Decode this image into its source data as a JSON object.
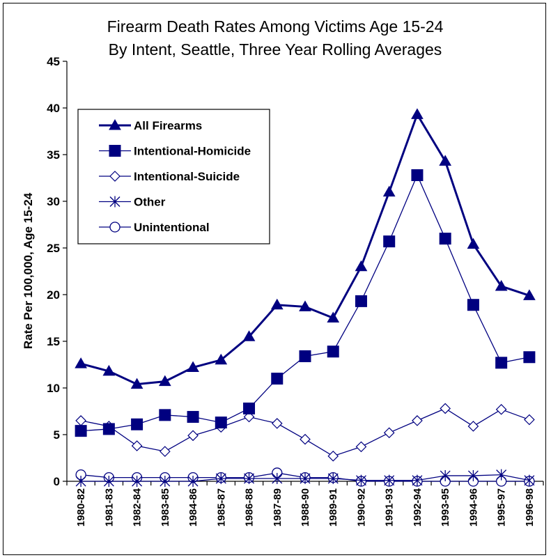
{
  "chart_data": {
    "type": "line",
    "title": "Firearm Death Rates Among Victims Age 15-24",
    "subtitle": "By Intent, Seattle, Three Year Rolling Averages",
    "ylabel": "Rate Per 100,000, Age 15-24",
    "xlabel": "",
    "ylim": [
      0,
      45
    ],
    "yticks": [
      "0",
      "5",
      "10",
      "15",
      "20",
      "25",
      "30",
      "35",
      "40",
      "45"
    ],
    "grid": false,
    "legend_position": "top-left",
    "categories": [
      "1980-82",
      "1981-83",
      "1982-84",
      "1983-85",
      "1984-86",
      "1985-87",
      "1986-88",
      "1987-89",
      "1988-90",
      "1989-91",
      "1990-92",
      "1991-93",
      "1992-94",
      "1993-95",
      "1994-96",
      "1995-97",
      "1996-98"
    ],
    "series": [
      {
        "name": "All Firearms",
        "marker": "triangle",
        "color": "#000080",
        "width": 3,
        "values": [
          12.6,
          11.8,
          10.4,
          10.7,
          12.2,
          13.0,
          15.5,
          18.9,
          18.7,
          17.5,
          23.0,
          31.0,
          39.3,
          34.3,
          25.4,
          20.9,
          19.9
        ]
      },
      {
        "name": "Intentional-Homicide",
        "marker": "square",
        "color": "#000080",
        "width": 1.3,
        "values": [
          5.4,
          5.6,
          6.1,
          7.1,
          6.9,
          6.3,
          7.8,
          11.0,
          13.4,
          13.9,
          19.3,
          25.7,
          32.8,
          26.0,
          18.9,
          12.7,
          13.3
        ]
      },
      {
        "name": "Intentional-Suicide",
        "marker": "diamond",
        "color": "#000080",
        "width": 1.3,
        "values": [
          6.5,
          5.9,
          3.8,
          3.2,
          4.9,
          5.8,
          6.9,
          6.2,
          4.5,
          2.7,
          3.7,
          5.2,
          6.5,
          7.8,
          5.9,
          7.7,
          6.6
        ]
      },
      {
        "name": "Other",
        "marker": "asterisk",
        "color": "#000080",
        "width": 1.3,
        "values": [
          0.0,
          0.0,
          0.0,
          0.0,
          0.0,
          0.3,
          0.3,
          0.3,
          0.3,
          0.3,
          0.1,
          0.1,
          0.1,
          0.6,
          0.6,
          0.7,
          0.1
        ]
      },
      {
        "name": "Unintentional",
        "marker": "circle",
        "color": "#000080",
        "width": 1.3,
        "values": [
          0.7,
          0.4,
          0.4,
          0.4,
          0.4,
          0.4,
          0.4,
          0.9,
          0.4,
          0.4,
          0.0,
          0.0,
          0.0,
          0.0,
          0.0,
          0.0,
          0.0
        ]
      }
    ]
  }
}
